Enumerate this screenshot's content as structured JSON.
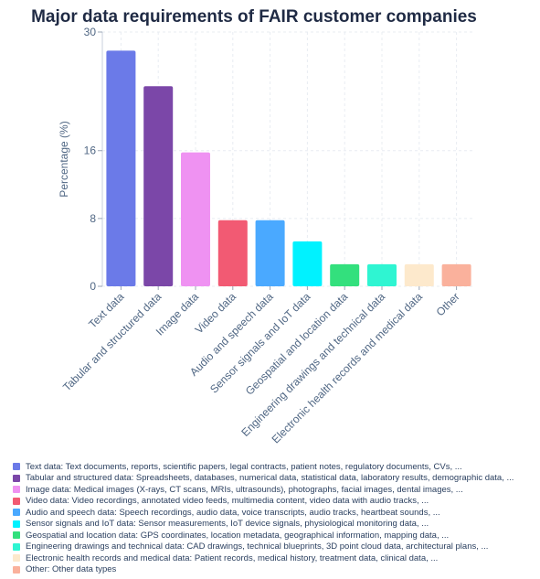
{
  "chart_data": {
    "type": "bar",
    "title": "Major data requirements of FAIR customer companies",
    "ylabel": "Percentage (%)",
    "xlabel": "",
    "ylim": [
      0,
      30
    ],
    "yticks": [
      0,
      8,
      16,
      30
    ],
    "grid": true,
    "legend_position": "bottom",
    "categories": [
      "Text data",
      "Tabular and structured data",
      "Image data",
      "Video data",
      "Audio and speech data",
      "Sensor signals and IoT data",
      "Geospatial and location data",
      "Engineering drawings and technical data",
      "Electronic health records and medical data",
      "Other"
    ],
    "values": [
      27.8,
      23.6,
      15.8,
      7.8,
      7.8,
      5.3,
      2.6,
      2.6,
      2.6,
      2.6
    ],
    "colors": [
      "#6b7ae8",
      "#7b47a8",
      "#ef92f2",
      "#f25a73",
      "#4aa9ff",
      "#00f2ff",
      "#33e07d",
      "#2ff5d2",
      "#fde9cc",
      "#fab19c"
    ],
    "legend": [
      "Text data: Text documents, reports, scientific papers, legal contracts, patient notes, regulatory documents, CVs, ...",
      "Tabular and structured data: Spreadsheets, databases, numerical data, statistical data, laboratory results, demographic data, ...",
      "Image data: Medical images (X-rays, CT scans, MRIs, ultrasounds), photographs, facial images, dental images, ...",
      "Video data: Video recordings, annotated video feeds, multimedia content, video data with audio tracks, ...",
      "Audio and speech data: Speech recordings, audio data, voice transcripts, audio tracks, heartbeat sounds, ...",
      "Sensor signals and IoT data: Sensor measurements, IoT device signals, physiological monitoring data, ...",
      "Geospatial and location data: GPS coordinates, location metadata, geographical information, mapping data, ...",
      "Engineering drawings and technical data: CAD drawings, technical blueprints, 3D point cloud data, architectural plans, ...",
      "Electronic health records and medical data: Patient records, medical history, treatment data, clinical data, ...",
      "Other: Other data types"
    ]
  }
}
